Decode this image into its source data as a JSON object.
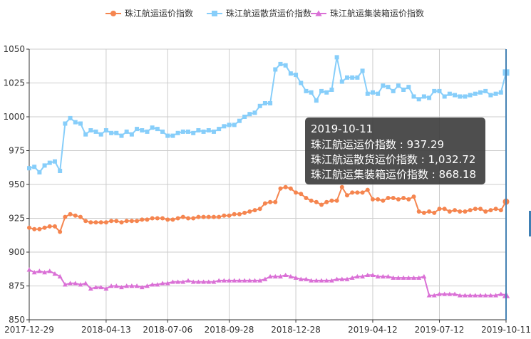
{
  "chart_data": {
    "type": "line",
    "x": [
      "2017-12-29",
      "2018-01-05",
      "2018-01-12",
      "2018-01-19",
      "2018-01-26",
      "2018-02-02",
      "2018-02-09",
      "2018-02-16",
      "2018-02-23",
      "2018-03-02",
      "2018-03-09",
      "2018-03-16",
      "2018-03-23",
      "2018-03-30",
      "2018-04-06",
      "2018-04-13",
      "2018-04-20",
      "2018-04-27",
      "2018-05-04",
      "2018-05-11",
      "2018-05-18",
      "2018-05-25",
      "2018-06-01",
      "2018-06-08",
      "2018-06-15",
      "2018-06-22",
      "2018-06-29",
      "2018-07-06",
      "2018-07-13",
      "2018-07-20",
      "2018-07-27",
      "2018-08-03",
      "2018-08-10",
      "2018-08-17",
      "2018-08-24",
      "2018-08-31",
      "2018-09-07",
      "2018-09-14",
      "2018-09-21",
      "2018-09-28",
      "2018-10-05",
      "2018-10-12",
      "2018-10-19",
      "2018-10-26",
      "2018-11-02",
      "2018-11-09",
      "2018-11-16",
      "2018-11-23",
      "2018-11-30",
      "2018-12-07",
      "2018-12-14",
      "2018-12-21",
      "2018-12-28",
      "2019-01-04",
      "2019-01-11",
      "2019-01-18",
      "2019-01-25",
      "2019-02-01",
      "2019-02-08",
      "2019-02-15",
      "2019-02-22",
      "2019-03-01",
      "2019-03-08",
      "2019-03-15",
      "2019-03-22",
      "2019-03-29",
      "2019-04-05",
      "2019-04-12",
      "2019-04-19",
      "2019-04-26",
      "2019-05-03",
      "2019-05-10",
      "2019-05-17",
      "2019-05-24",
      "2019-05-31",
      "2019-06-07",
      "2019-06-14",
      "2019-06-21",
      "2019-06-28",
      "2019-07-05",
      "2019-07-12",
      "2019-07-19",
      "2019-07-26",
      "2019-08-02",
      "2019-08-09",
      "2019-08-16",
      "2019-08-23",
      "2019-08-30",
      "2019-09-06",
      "2019-09-13",
      "2019-09-20",
      "2019-09-27",
      "2019-10-04",
      "2019-10-11"
    ],
    "x_ticks": [
      "2017-12-29",
      "2018-04-13",
      "2018-07-06",
      "2018-09-28",
      "2018-12-28",
      "2019-04-12",
      "2019-07-12",
      "2019-10-11"
    ],
    "y_ticks": [
      850,
      875,
      900,
      925,
      950,
      975,
      1000,
      1025,
      1050
    ],
    "ylim": [
      850,
      1050
    ],
    "grid": true,
    "legend_position": "top-center",
    "series": [
      {
        "name": "珠江航运运价指数",
        "color": "#f5854f",
        "marker": "circle",
        "values": [
          918,
          917,
          917,
          918,
          919,
          919,
          915,
          926,
          928,
          927,
          926,
          923,
          922,
          922,
          922,
          922,
          923,
          923,
          922,
          923,
          923,
          923,
          924,
          924,
          925,
          925,
          925,
          924,
          924,
          925,
          926,
          925,
          925,
          926,
          926,
          926,
          926,
          926,
          927,
          927,
          928,
          928,
          929,
          930,
          931,
          932,
          936,
          937,
          937,
          947,
          948,
          947,
          944,
          943,
          940,
          938,
          937,
          935,
          937,
          938,
          938,
          948,
          942,
          944,
          944,
          944,
          946,
          939,
          939,
          938,
          940,
          940,
          939,
          940,
          939,
          941,
          930,
          929,
          930,
          929,
          932,
          932,
          930,
          931,
          937.29,
          925,
          925,
          925,
          925,
          925,
          925,
          925,
          925,
          937.29
        ]
      },
      {
        "name": "珠江航运散货运价指数",
        "color": "#87cefa",
        "marker": "square",
        "values": [
          962,
          963,
          959,
          964,
          966,
          967,
          960,
          995,
          999,
          996,
          995,
          987,
          990,
          989,
          987,
          990,
          988,
          988,
          986,
          989,
          987,
          991,
          990,
          989,
          992,
          991,
          989,
          986,
          986,
          988,
          989,
          989,
          988,
          990,
          989,
          990,
          989,
          991,
          993,
          994,
          994,
          997,
          1000,
          1002,
          1003,
          1008,
          1010,
          1010,
          1035,
          1039,
          1038,
          1032,
          1031,
          1025,
          1019,
          1018,
          1012,
          1019,
          1018,
          1020,
          1044,
          1026,
          1029,
          1029,
          1029,
          1034,
          1017,
          1018,
          1017,
          1023,
          1022,
          1019,
          1023,
          1020,
          1022,
          1015,
          1013,
          1015,
          1014,
          1019,
          1019,
          1015,
          1017,
          1032.72,
          1000,
          1000,
          1000,
          1000,
          1000,
          1000,
          1000,
          1000,
          1000,
          1032.72
        ]
      },
      {
        "name": "珠江航运集装箱运价指数",
        "color": "#da70d6",
        "marker": "triangle",
        "values": [
          887,
          885,
          886,
          885,
          886,
          884,
          882,
          876,
          877,
          877,
          876,
          877,
          873,
          874,
          874,
          873,
          875,
          875,
          874,
          875,
          875,
          875,
          874,
          875,
          876,
          876,
          877,
          877,
          878,
          878,
          878,
          879,
          878,
          878,
          878,
          878,
          878,
          879,
          879,
          879,
          879,
          879,
          879,
          879,
          879,
          879,
          880,
          882,
          882,
          882,
          883,
          882,
          881,
          880,
          880,
          879,
          879,
          879,
          879,
          879,
          880,
          880,
          880,
          881,
          882,
          882,
          883,
          883,
          882,
          882,
          882,
          881,
          881,
          881,
          881,
          881,
          881,
          882,
          868,
          868,
          869,
          869,
          869,
          869,
          868,
          868,
          868,
          868,
          868,
          868,
          868,
          868,
          868,
          868.18
        ]
      }
    ],
    "tooltip": {
      "date": "2019-10-11",
      "lines": [
        {
          "label": "珠江航运运价指数",
          "value": "937.29"
        },
        {
          "label": "珠江航运散货运价指数",
          "value": "1,032.72"
        },
        {
          "label": "珠江航运集装箱运价指数",
          "value": "868.18"
        }
      ]
    }
  }
}
